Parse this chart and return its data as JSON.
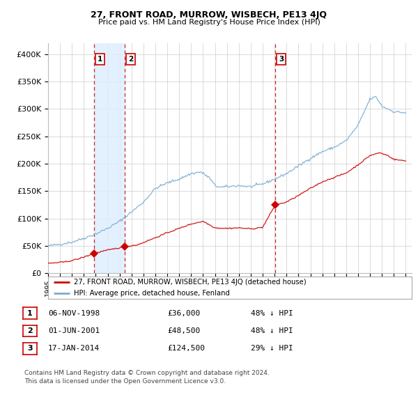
{
  "title": "27, FRONT ROAD, MURROW, WISBECH, PE13 4JQ",
  "subtitle": "Price paid vs. HM Land Registry's House Price Index (HPI)",
  "ylim": [
    0,
    420000
  ],
  "yticks": [
    0,
    50000,
    100000,
    150000,
    200000,
    250000,
    300000,
    350000,
    400000
  ],
  "ytick_labels": [
    "£0",
    "£50K",
    "£100K",
    "£150K",
    "£200K",
    "£250K",
    "£300K",
    "£350K",
    "£400K"
  ],
  "xlim_left": 1995.0,
  "xlim_right": 2025.5,
  "sales": [
    {
      "date_num": 1998.85,
      "price": 36000,
      "label": "1"
    },
    {
      "date_num": 2001.42,
      "price": 48500,
      "label": "2"
    },
    {
      "date_num": 2014.05,
      "price": 124500,
      "label": "3"
    }
  ],
  "shade_x0": 1998.85,
  "shade_x1": 2001.42,
  "legend_property": "27, FRONT ROAD, MURROW, WISBECH, PE13 4JQ (detached house)",
  "legend_hpi": "HPI: Average price, detached house, Fenland",
  "table_rows": [
    {
      "num": "1",
      "date": "06-NOV-1998",
      "price": "£36,000",
      "note": "48% ↓ HPI"
    },
    {
      "num": "2",
      "date": "01-JUN-2001",
      "price": "£48,500",
      "note": "48% ↓ HPI"
    },
    {
      "num": "3",
      "date": "17-JAN-2014",
      "price": "£124,500",
      "note": "29% ↓ HPI"
    }
  ],
  "footnote1": "Contains HM Land Registry data © Crown copyright and database right 2024.",
  "footnote2": "This data is licensed under the Open Government Licence v3.0.",
  "red_color": "#cc0000",
  "blue_color": "#7aadcf",
  "shade_color": "#ddeeff",
  "bg_color": "#ffffff",
  "grid_color": "#cccccc"
}
